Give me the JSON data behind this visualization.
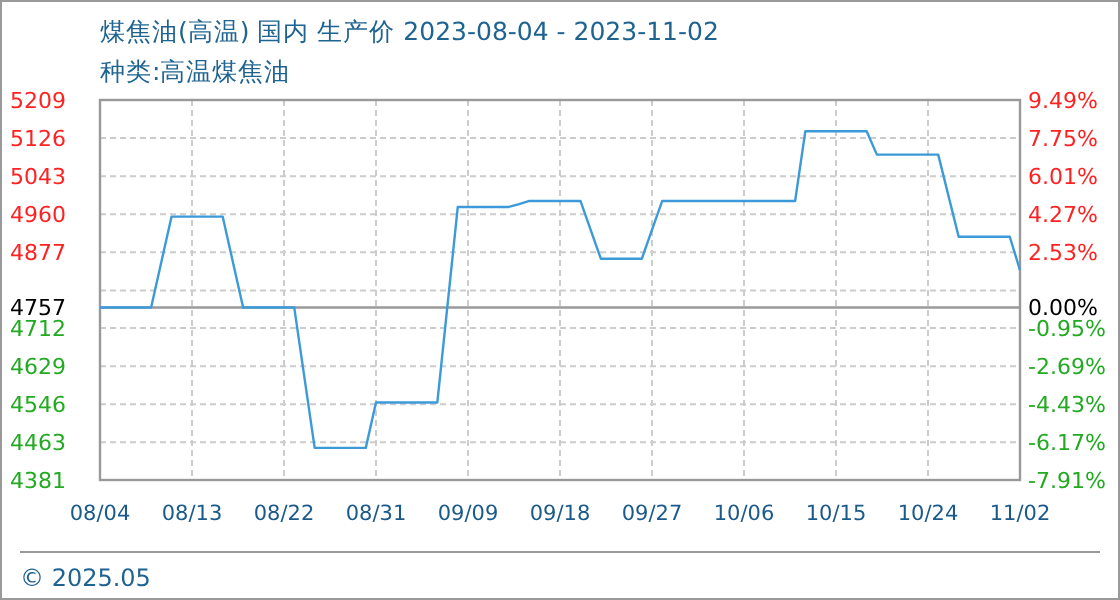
{
  "chart_data": {
    "type": "line",
    "title": "煤焦油(高温) 国内 生产价 2023-08-04 - 2023-11-02",
    "subtitle": "种类:高温煤焦油",
    "x": [
      "2023-08-04",
      "2023-08-09",
      "2023-08-11",
      "2023-08-16",
      "2023-08-18",
      "2023-08-23",
      "2023-08-25",
      "2023-08-30",
      "2023-08-31",
      "2023-09-06",
      "2023-09-08",
      "2023-09-13",
      "2023-09-14",
      "2023-09-15",
      "2023-09-20",
      "2023-09-22",
      "2023-09-26",
      "2023-09-28",
      "2023-10-11",
      "2023-10-12",
      "2023-10-18",
      "2023-10-19",
      "2023-10-25",
      "2023-10-27",
      "2023-11-01",
      "2023-11-02"
    ],
    "series": [
      {
        "color": "#3d9ad8",
        "values": [
          4757,
          4757,
          4955,
          4955,
          4757,
          4757,
          4451,
          4451,
          4550,
          4550,
          4976,
          4976,
          4982,
          4989,
          4989,
          4863,
          4863,
          4989,
          4989,
          5141,
          5141,
          5090,
          5090,
          4911,
          4911,
          4838
        ]
      }
    ],
    "xlim": [
      "2023-08-04",
      "2023-11-02"
    ],
    "xticks": [
      {
        "value": "2023-08-04",
        "label": "08/04"
      },
      {
        "value": "2023-08-13",
        "label": "08/13"
      },
      {
        "value": "2023-08-22",
        "label": "08/22"
      },
      {
        "value": "2023-08-31",
        "label": "08/31"
      },
      {
        "value": "2023-09-09",
        "label": "09/09"
      },
      {
        "value": "2023-09-18",
        "label": "09/18"
      },
      {
        "value": "2023-09-27",
        "label": "09/27"
      },
      {
        "value": "2023-10-06",
        "label": "10/06"
      },
      {
        "value": "2023-10-15",
        "label": "10/15"
      },
      {
        "value": "2023-10-24",
        "label": "10/24"
      },
      {
        "value": "2023-11-02",
        "label": "11/02"
      }
    ],
    "ylim": [
      4381,
      5209
    ],
    "yticks": [
      5209,
      5126,
      5043,
      4960,
      4877,
      {
        "value": 4794,
        "label": null
      },
      4757,
      4712,
      4629,
      4546,
      4463,
      4381
    ],
    "y2lim": [
      -7.91,
      9.49
    ],
    "y2ticks": [
      {
        "value": 9.49,
        "label": "9.49%"
      },
      {
        "value": 7.75,
        "label": "7.75%"
      },
      {
        "value": 6.01,
        "label": "6.01%"
      },
      {
        "value": 4.27,
        "label": "4.27%"
      },
      {
        "value": 2.53,
        "label": "2.53%"
      },
      {
        "value": 0,
        "label": "0.00%"
      },
      {
        "value": -0.95,
        "label": "-0.95%"
      },
      {
        "value": -2.69,
        "label": "-2.69%"
      },
      {
        "value": -4.43,
        "label": "-4.43%"
      },
      {
        "value": -6.17,
        "label": "-6.17%"
      },
      {
        "value": -7.91,
        "label": "-7.91%"
      }
    ],
    "ref_lines": [
      {
        "axis": "y",
        "value": 4757,
        "color": "#999999"
      }
    ],
    "grid": true,
    "marker": "none",
    "line_style": "solid",
    "annotations": [
      "© 2025.05"
    ]
  }
}
